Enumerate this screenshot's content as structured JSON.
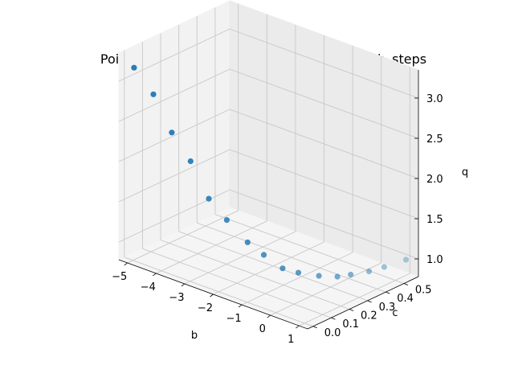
{
  "chart_data": {
    "type": "scatter3d",
    "title": "Point cloud for h_tenthousandth_hp_bulirsch_steps",
    "xlabel": "b",
    "ylabel": "c",
    "zlabel": "q",
    "xticks": [
      -5,
      -4,
      -3,
      -2,
      -1,
      0,
      1
    ],
    "yticks": [
      "0.0",
      "0.1",
      "0.2",
      "0.3",
      "0.4",
      "0.5"
    ],
    "zticks": [
      "1.0",
      "1.5",
      "2.0",
      "2.5",
      "3.0"
    ],
    "xlim": [
      -5.3,
      1.3
    ],
    "ylim": [
      -0.03,
      0.58
    ],
    "zlim": [
      0.78,
      3.35
    ],
    "grid": true,
    "marker_color": "#1f77b4",
    "points": [
      {
        "b": -4.96,
        "c": 0.0,
        "q": 3.18
      },
      {
        "b": -4.41,
        "c": 0.02,
        "q": 2.9
      },
      {
        "b": -3.83,
        "c": 0.03,
        "q": 2.49
      },
      {
        "b": -3.3,
        "c": 0.05,
        "q": 2.18
      },
      {
        "b": -2.79,
        "c": 0.07,
        "q": 1.76
      },
      {
        "b": -2.35,
        "c": 0.1,
        "q": 1.52
      },
      {
        "b": -1.75,
        "c": 0.12,
        "q": 1.3
      },
      {
        "b": -1.31,
        "c": 0.14,
        "q": 1.18
      },
      {
        "b": -0.78,
        "c": 0.16,
        "q": 1.06
      },
      {
        "b": -0.42,
        "c": 0.19,
        "q": 1.02
      },
      {
        "b": -0.02,
        "c": 0.24,
        "q": 0.98
      },
      {
        "b": 0.31,
        "c": 0.29,
        "q": 0.96
      },
      {
        "b": 0.52,
        "c": 0.33,
        "q": 0.97
      },
      {
        "b": 0.78,
        "c": 0.39,
        "q": 0.98
      },
      {
        "b": 0.93,
        "c": 0.45,
        "q": 0.99
      },
      {
        "b": 1.12,
        "c": 0.54,
        "q": 1.01
      }
    ]
  }
}
